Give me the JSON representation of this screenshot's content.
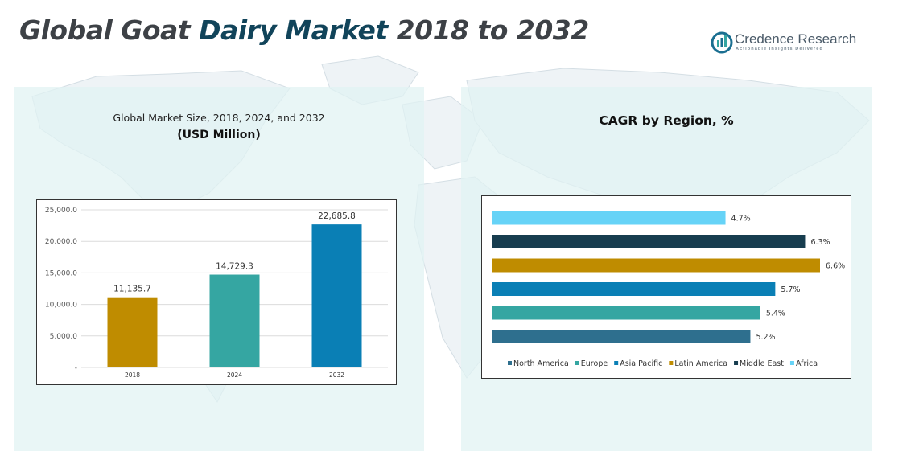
{
  "title": {
    "part1": "Global Goat ",
    "part2": "Dairy Market",
    "part3": " 2018 to 2032"
  },
  "brand": {
    "name": "Credence Research",
    "tagline": "Actionable Insights Delivered"
  },
  "left_panel": {
    "subtitle": "Global Market Size, 2018, 2024, and 2032",
    "unit": "(USD Million)"
  },
  "right_panel": {
    "title": "CAGR by Region, %"
  },
  "colors": {
    "gold": "#bf8c00",
    "teal": "#35a6a2",
    "blue": "#0a7fb5",
    "navy": "#173d4f",
    "steel": "#2e6f8e",
    "sky": "#66d3f7"
  },
  "chart_data": [
    {
      "type": "bar",
      "categories": [
        "2018",
        "2024",
        "2032"
      ],
      "values": [
        11135.7,
        14729.3,
        22685.8
      ],
      "value_labels": [
        "11,135.7",
        "14,729.3",
        "22,685.8"
      ],
      "bar_colors": [
        "#bf8c00",
        "#35a6a2",
        "#0a7fb5"
      ],
      "ylim": [
        0,
        25000
      ],
      "yticks": [
        0,
        5000,
        10000,
        15000,
        20000,
        25000
      ],
      "ytick_labels": [
        "-",
        "5,000.0",
        "10,000.0",
        "15,000.0",
        "20,000.0",
        "25,000.0"
      ],
      "grid": true,
      "legend": "none"
    },
    {
      "type": "bar",
      "orientation": "horizontal",
      "categories": [
        "North America",
        "Europe",
        "Asia Pacific",
        "Latin America",
        "Middle East",
        "Africa"
      ],
      "values": [
        5.2,
        5.4,
        5.7,
        6.6,
        6.3,
        4.7
      ],
      "value_labels": [
        "5.2%",
        "5.4%",
        "5.7%",
        "6.6%",
        "6.3%",
        "4.7%"
      ],
      "bar_colors": [
        "#2e6f8e",
        "#35a6a2",
        "#0a7fb5",
        "#bf8c00",
        "#173d4f",
        "#66d3f7"
      ],
      "legend": "bottom",
      "grid": false
    }
  ]
}
